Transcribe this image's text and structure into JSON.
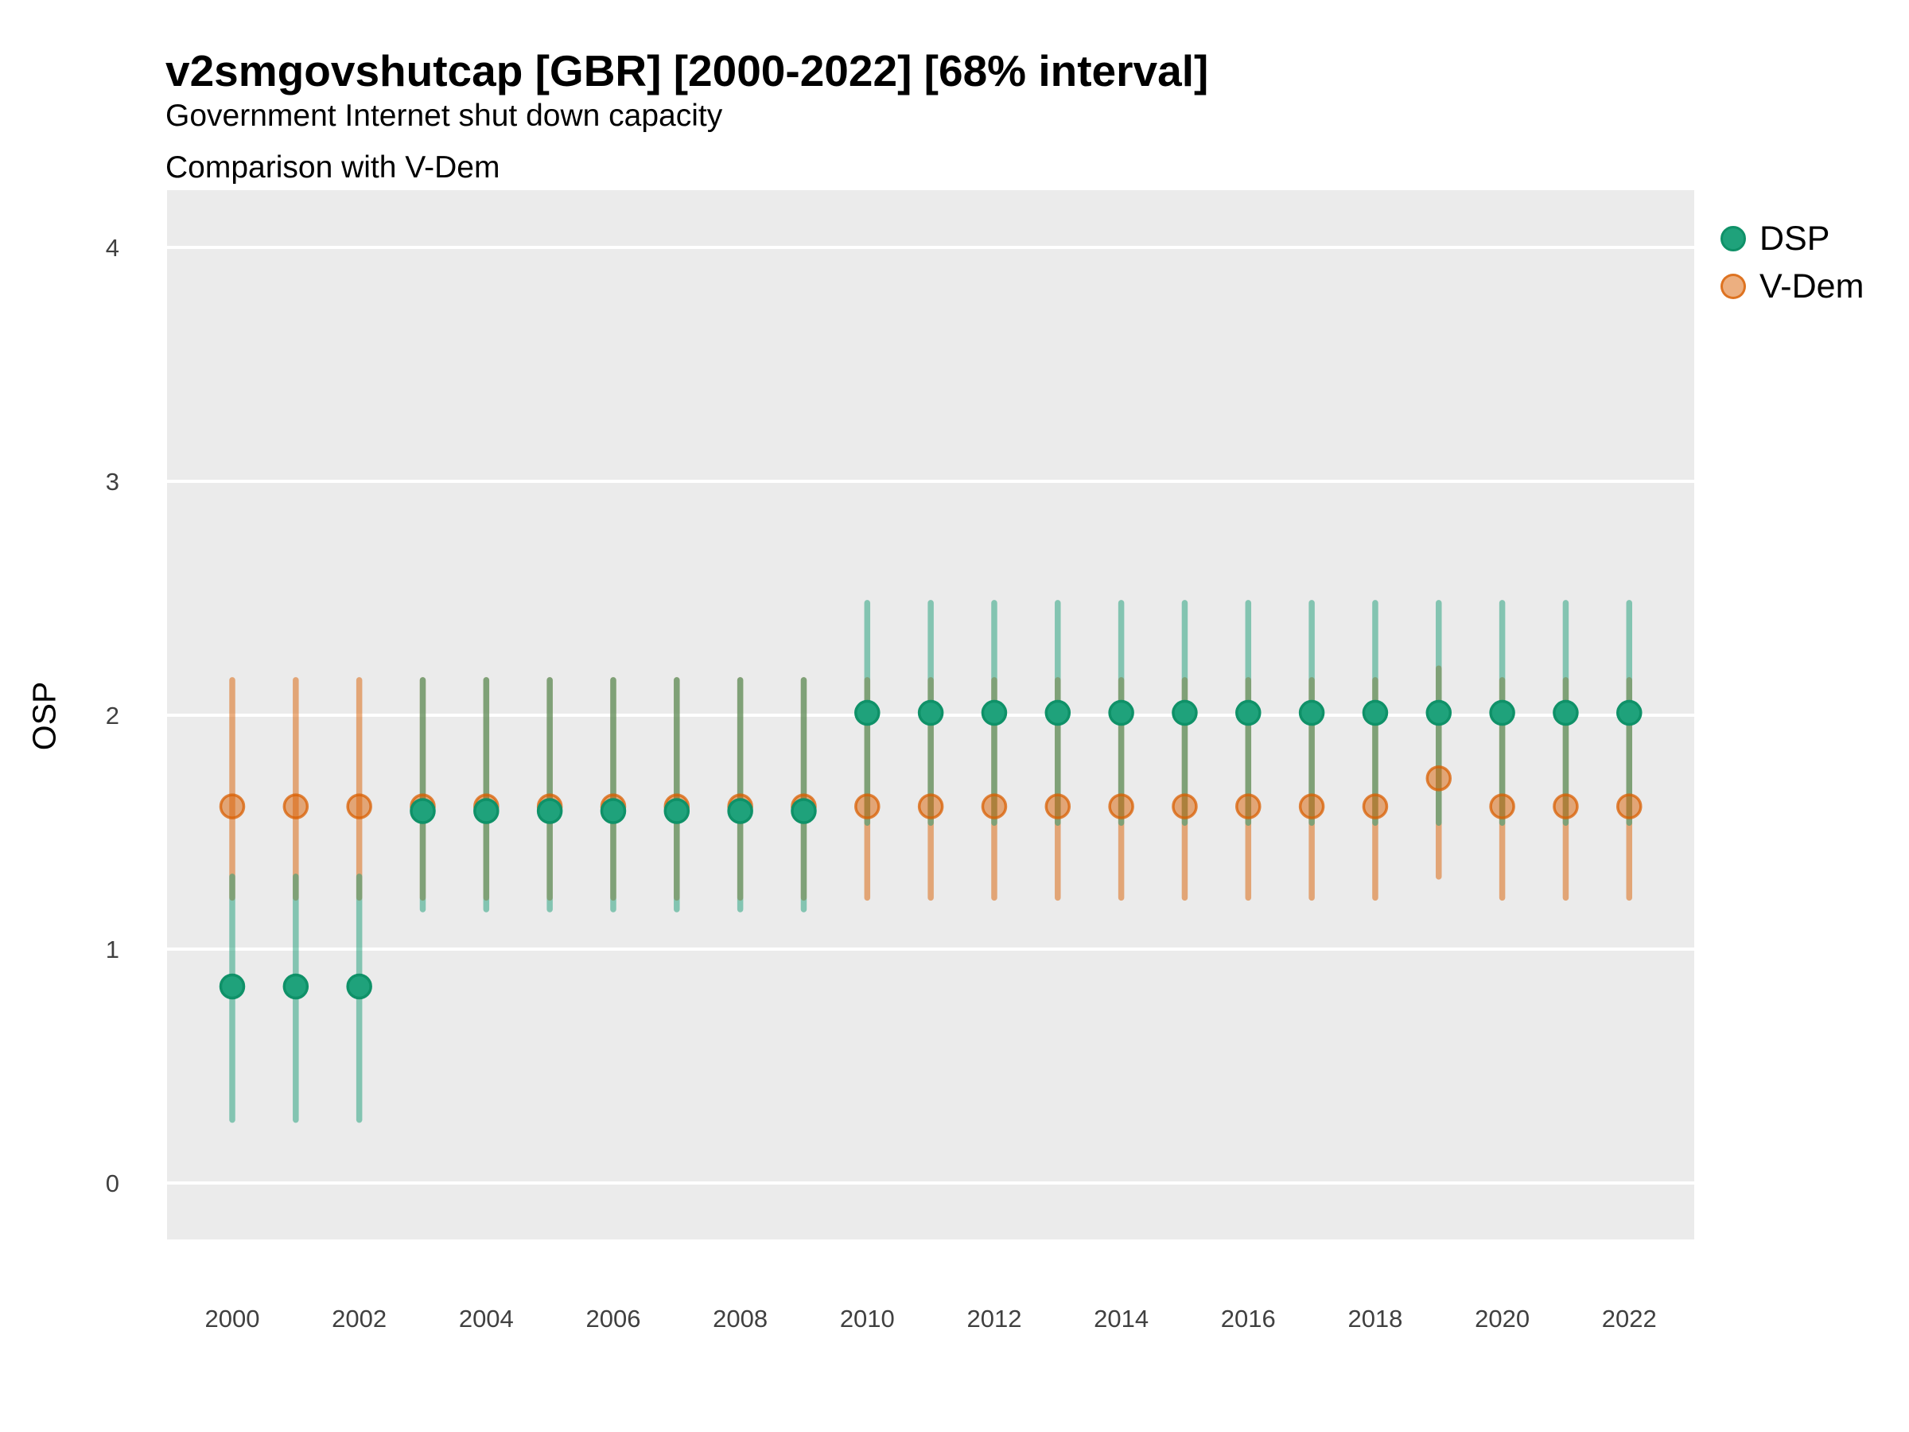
{
  "chart_data": {
    "type": "pointrange",
    "title": "v2smgovshutcap [GBR] [2000-2022] [68% interval]",
    "subtitle1": "Government Internet shut down capacity",
    "subtitle2": "Comparison with V-Dem",
    "ylabel": "OSP",
    "interval": "68%",
    "yticks": [
      0,
      1,
      2,
      3,
      4
    ],
    "ylim": [
      -0.24,
      4.25
    ],
    "xticks": [
      2000,
      2002,
      2004,
      2006,
      2008,
      2010,
      2012,
      2014,
      2016,
      2018,
      2020,
      2022
    ],
    "legend_position": "right",
    "grid": "horizontal-major-only",
    "series": [
      {
        "name": "DSP",
        "point_fill": "#1fa27b",
        "point_stroke": "#0f9168",
        "bar_color": "rgba(27,158,119,0.5)",
        "points": [
          {
            "year": 2000,
            "est": 0.84,
            "lo": 0.27,
            "hi": 1.31
          },
          {
            "year": 2001,
            "est": 0.84,
            "lo": 0.27,
            "hi": 1.31
          },
          {
            "year": 2002,
            "est": 0.84,
            "lo": 0.27,
            "hi": 1.31
          },
          {
            "year": 2003,
            "est": 1.59,
            "lo": 1.17,
            "hi": 2.15
          },
          {
            "year": 2004,
            "est": 1.59,
            "lo": 1.17,
            "hi": 2.15
          },
          {
            "year": 2005,
            "est": 1.59,
            "lo": 1.17,
            "hi": 2.15
          },
          {
            "year": 2006,
            "est": 1.59,
            "lo": 1.17,
            "hi": 2.15
          },
          {
            "year": 2007,
            "est": 1.59,
            "lo": 1.17,
            "hi": 2.15
          },
          {
            "year": 2008,
            "est": 1.59,
            "lo": 1.17,
            "hi": 2.15
          },
          {
            "year": 2009,
            "est": 1.59,
            "lo": 1.17,
            "hi": 2.15
          },
          {
            "year": 2010,
            "est": 2.01,
            "lo": 1.54,
            "hi": 2.48
          },
          {
            "year": 2011,
            "est": 2.01,
            "lo": 1.54,
            "hi": 2.48
          },
          {
            "year": 2012,
            "est": 2.01,
            "lo": 1.54,
            "hi": 2.48
          },
          {
            "year": 2013,
            "est": 2.01,
            "lo": 1.54,
            "hi": 2.48
          },
          {
            "year": 2014,
            "est": 2.01,
            "lo": 1.54,
            "hi": 2.48
          },
          {
            "year": 2015,
            "est": 2.01,
            "lo": 1.54,
            "hi": 2.48
          },
          {
            "year": 2016,
            "est": 2.01,
            "lo": 1.54,
            "hi": 2.48
          },
          {
            "year": 2017,
            "est": 2.01,
            "lo": 1.54,
            "hi": 2.48
          },
          {
            "year": 2018,
            "est": 2.01,
            "lo": 1.54,
            "hi": 2.48
          },
          {
            "year": 2019,
            "est": 2.01,
            "lo": 1.54,
            "hi": 2.48
          },
          {
            "year": 2020,
            "est": 2.01,
            "lo": 1.54,
            "hi": 2.48
          },
          {
            "year": 2021,
            "est": 2.01,
            "lo": 1.54,
            "hi": 2.48
          },
          {
            "year": 2022,
            "est": 2.01,
            "lo": 1.54,
            "hi": 2.48
          }
        ]
      },
      {
        "name": "V-Dem",
        "point_fill": "rgba(217,95,2,0.5)",
        "point_stroke": "rgba(217,95,2,0.75)",
        "bar_color": "rgba(217,95,2,0.5)",
        "points": [
          {
            "year": 2000,
            "est": 1.61,
            "lo": 1.22,
            "hi": 2.15
          },
          {
            "year": 2001,
            "est": 1.61,
            "lo": 1.22,
            "hi": 2.15
          },
          {
            "year": 2002,
            "est": 1.61,
            "lo": 1.22,
            "hi": 2.15
          },
          {
            "year": 2003,
            "est": 1.61,
            "lo": 1.22,
            "hi": 2.15
          },
          {
            "year": 2004,
            "est": 1.61,
            "lo": 1.22,
            "hi": 2.15
          },
          {
            "year": 2005,
            "est": 1.61,
            "lo": 1.22,
            "hi": 2.15
          },
          {
            "year": 2006,
            "est": 1.61,
            "lo": 1.22,
            "hi": 2.15
          },
          {
            "year": 2007,
            "est": 1.61,
            "lo": 1.22,
            "hi": 2.15
          },
          {
            "year": 2008,
            "est": 1.61,
            "lo": 1.22,
            "hi": 2.15
          },
          {
            "year": 2009,
            "est": 1.61,
            "lo": 1.22,
            "hi": 2.15
          },
          {
            "year": 2010,
            "est": 1.61,
            "lo": 1.22,
            "hi": 2.15
          },
          {
            "year": 2011,
            "est": 1.61,
            "lo": 1.22,
            "hi": 2.15
          },
          {
            "year": 2012,
            "est": 1.61,
            "lo": 1.22,
            "hi": 2.15
          },
          {
            "year": 2013,
            "est": 1.61,
            "lo": 1.22,
            "hi": 2.15
          },
          {
            "year": 2014,
            "est": 1.61,
            "lo": 1.22,
            "hi": 2.15
          },
          {
            "year": 2015,
            "est": 1.61,
            "lo": 1.22,
            "hi": 2.15
          },
          {
            "year": 2016,
            "est": 1.61,
            "lo": 1.22,
            "hi": 2.15
          },
          {
            "year": 2017,
            "est": 1.61,
            "lo": 1.22,
            "hi": 2.15
          },
          {
            "year": 2018,
            "est": 1.61,
            "lo": 1.22,
            "hi": 2.15
          },
          {
            "year": 2019,
            "est": 1.73,
            "lo": 1.31,
            "hi": 2.2
          },
          {
            "year": 2020,
            "est": 1.61,
            "lo": 1.22,
            "hi": 2.15
          },
          {
            "year": 2021,
            "est": 1.61,
            "lo": 1.22,
            "hi": 2.15
          },
          {
            "year": 2022,
            "est": 1.61,
            "lo": 1.22,
            "hi": 2.15
          }
        ]
      }
    ]
  },
  "colors": {
    "panel_bg": "#ebebeb",
    "gridline": "#ffffff",
    "tick_text": "#404040",
    "title_text": "#000000"
  }
}
